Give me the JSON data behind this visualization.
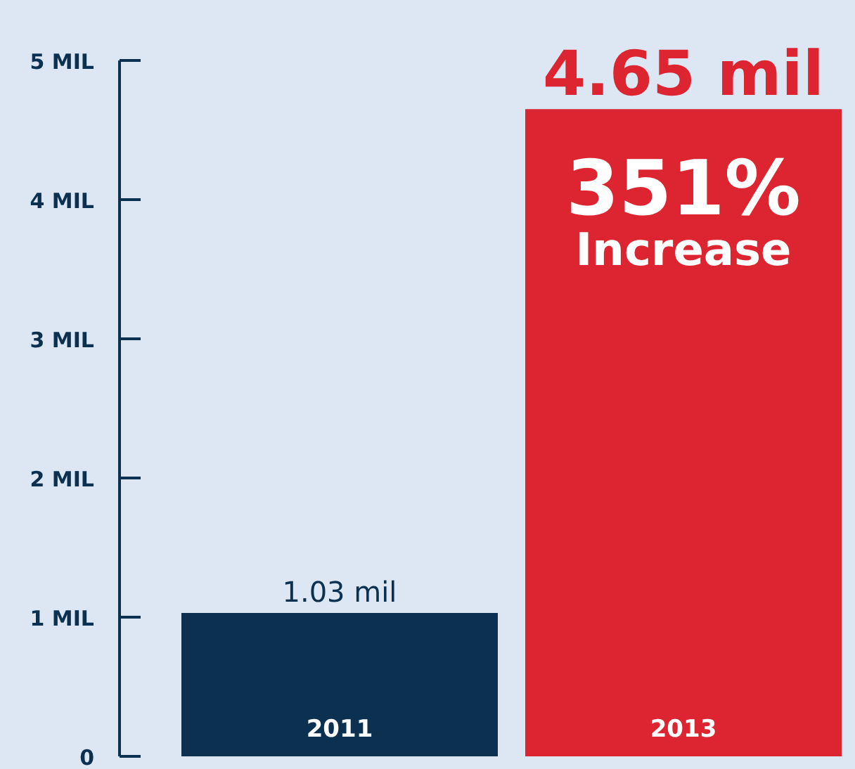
{
  "chart_data": {
    "type": "bar",
    "categories": [
      "2011",
      "2013"
    ],
    "values": [
      1.03,
      4.65
    ],
    "colors": [
      "#0c3050",
      "#dc2530"
    ],
    "value_labels": [
      "1.03 mil",
      "4.65 mil"
    ],
    "ylim": [
      0,
      5
    ],
    "yticks": [
      {
        "value": 0,
        "label": "0"
      },
      {
        "value": 1,
        "label": "1 MIL"
      },
      {
        "value": 2,
        "label": "2 MIL"
      },
      {
        "value": 3,
        "label": "3 MIL"
      },
      {
        "value": 4,
        "label": "4 MIL"
      },
      {
        "value": 5,
        "label": "5 MIL"
      }
    ],
    "annotations": [
      "351% Increase"
    ],
    "grid": false,
    "legend": false
  }
}
